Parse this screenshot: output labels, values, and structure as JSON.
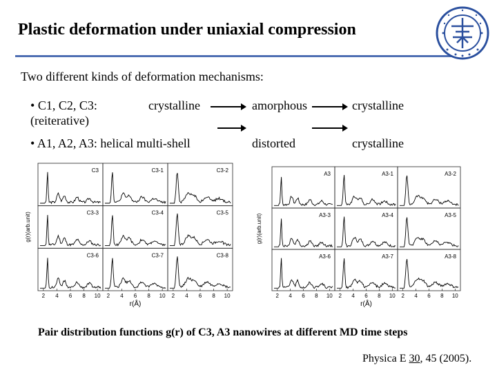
{
  "title": "Plastic deformation under uniaxial compression",
  "subtitle": "Two different kinds of deformation mechanisms:",
  "bullets": [
    {
      "marker": "•",
      "label": "C1, C2, C3:",
      "stages": [
        "crystalline",
        "amorphous",
        "crystalline"
      ],
      "note": "(reiterative)"
    },
    {
      "marker": "•",
      "label": "A1, A2, A3: helical multi-shell",
      "stages": [
        "distorted",
        "crystalline"
      ]
    }
  ],
  "figures": [
    {
      "ylabel": "g(r)(arb.unit)",
      "xlabel": "r(Å)",
      "panels": [
        "C3",
        "C3-1",
        "C3-2",
        "C3-3",
        "C3-4",
        "C3-5",
        "C3-6",
        "C3-7",
        "C3-8"
      ],
      "xticks": [
        "2",
        "4",
        "6",
        "8",
        "10"
      ]
    },
    {
      "ylabel": "g(r)(arb.unit)",
      "xlabel": "r(Å)",
      "panels": [
        "A3",
        "A3-1",
        "A3-2",
        "A3-3",
        "A3-4",
        "A3-5",
        "A3-6",
        "A3-7",
        "A3-8"
      ],
      "xticks": [
        "2",
        "4",
        "6",
        "8",
        "10"
      ]
    }
  ],
  "caption": "Pair distribution functions g(r) of C3, A3 nanowires at different MD time steps",
  "citation": {
    "journal": "Physica E",
    "volume": "30",
    "rest": ", 45 (2005)."
  },
  "colors": {
    "rule": "#4f6fb3",
    "logo": "#2a4f9e"
  }
}
